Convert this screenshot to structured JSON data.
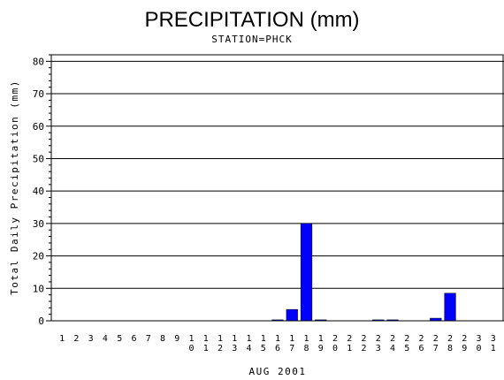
{
  "chart_data": {
    "type": "bar",
    "title": "PRECIPITATION (mm)",
    "subtitle": "STATION=PHCK",
    "xlabel": "AUG 2001",
    "ylabel": "Total Daily Precipitation (mm)",
    "ylim": [
      0,
      82
    ],
    "yticks": [
      0,
      10,
      20,
      30,
      40,
      50,
      60,
      70,
      80
    ],
    "grid": true,
    "categories": [
      "1",
      "2",
      "3",
      "4",
      "5",
      "6",
      "7",
      "8",
      "9",
      "10",
      "11",
      "12",
      "13",
      "14",
      "15",
      "16",
      "17",
      "18",
      "19",
      "20",
      "21",
      "22",
      "23",
      "24",
      "25",
      "26",
      "27",
      "28",
      "29",
      "30",
      "31"
    ],
    "values": [
      0,
      0,
      0,
      0,
      0,
      0,
      0,
      0,
      0,
      0,
      0,
      0,
      0,
      0,
      0,
      0.3,
      3.5,
      30,
      0.3,
      0,
      0,
      0,
      0.3,
      0.3,
      0,
      0,
      0.8,
      8.5,
      0,
      0,
      0
    ],
    "bar_color": "#0000ff"
  }
}
